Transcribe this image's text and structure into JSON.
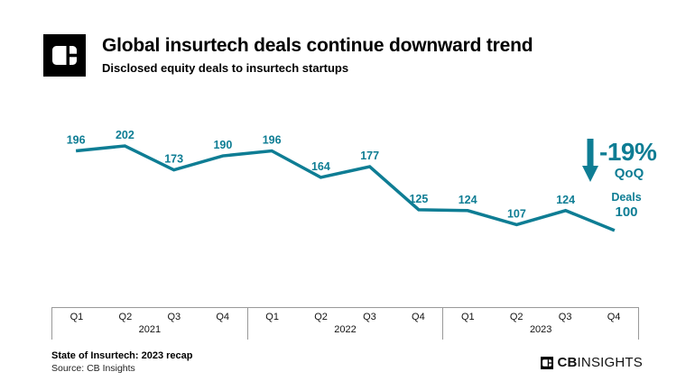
{
  "header": {
    "title": "Global insurtech deals continue downward trend",
    "subtitle": "Disclosed equity deals to insurtech startups"
  },
  "chart_data": {
    "type": "line",
    "title": "Global insurtech deals continue downward trend",
    "subtitle": "Disclosed equity deals to insurtech startups",
    "series": [
      {
        "name": "Deals",
        "values": [
          196,
          202,
          173,
          190,
          196,
          164,
          177,
          125,
          124,
          107,
          124,
          100
        ]
      }
    ],
    "years": [
      {
        "label": "2021",
        "quarters": [
          "Q1",
          "Q2",
          "Q3",
          "Q4"
        ]
      },
      {
        "label": "2022",
        "quarters": [
          "Q1",
          "Q2",
          "Q3",
          "Q4"
        ]
      },
      {
        "label": "2023",
        "quarters": [
          "Q1",
          "Q2",
          "Q3",
          "Q4"
        ]
      }
    ],
    "line_color": "#0e7d94",
    "label_color": "#0e7d94",
    "grid": false,
    "legend_position": "none",
    "annotation": {
      "change": "-19%",
      "period": "QoQ",
      "direction": "down"
    }
  },
  "footer": {
    "report_title": "State of Insurtech: 2023 recap",
    "source": "Source: CB Insights",
    "brand_bold": "CB",
    "brand_light": "INSIGHTS"
  }
}
